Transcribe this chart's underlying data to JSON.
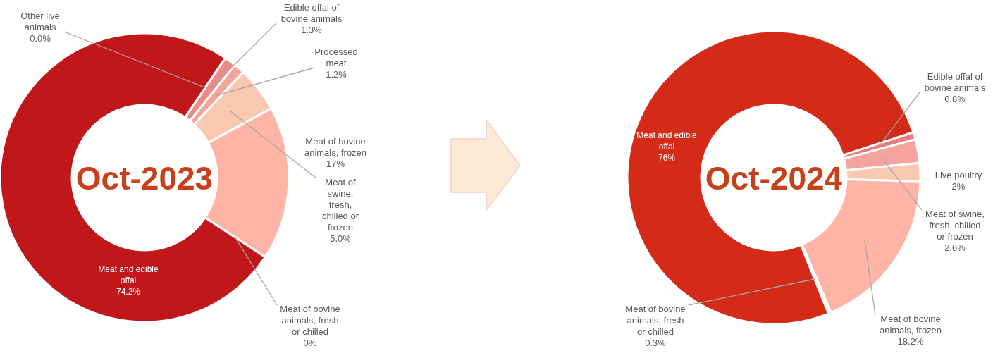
{
  "chart_data": [
    {
      "type": "donut",
      "title": "Oct-2023",
      "categories": [
        "Other live animals",
        "Edible offal of bovine animals",
        "Processed meat",
        "Meat of swine, fresh, chilled or frozen",
        "Meat of bovine animals, frozen",
        "Meat of bovine animals, fresh or chilled",
        "Meat and edible offal"
      ],
      "values": [
        0.0,
        1.3,
        1.2,
        5.0,
        17,
        0,
        74.2
      ],
      "value_labels": [
        "0.0%",
        "1.3%",
        "1.2%",
        "5.0%",
        "17%",
        "0%",
        "74.2%"
      ],
      "colors": [
        "#e8787a",
        "#ef8a88",
        "#f4a49c",
        "#fac8b0",
        "#ffb4a6",
        "#fde0d0",
        "#c1161a"
      ]
    },
    {
      "type": "donut",
      "title": "Oct-2024",
      "categories": [
        "Edible offal of bovine animals",
        "Meat of swine, fresh, chilled or frozen",
        "Live poultry",
        "Meat of bovine animals, frozen",
        "Meat of bovine animals, fresh or chilled",
        "Meat and edible offal"
      ],
      "values": [
        0.8,
        2.6,
        2,
        18.2,
        0.3,
        76
      ],
      "value_labels": [
        "0.8%",
        "2.6%",
        "2%",
        "18.2%",
        "0.3%",
        "76%"
      ],
      "colors": [
        "#ec7a7c",
        "#f4a49c",
        "#fac8b0",
        "#ffb4a6",
        "#fde0d0",
        "#d42a18"
      ]
    }
  ]
}
